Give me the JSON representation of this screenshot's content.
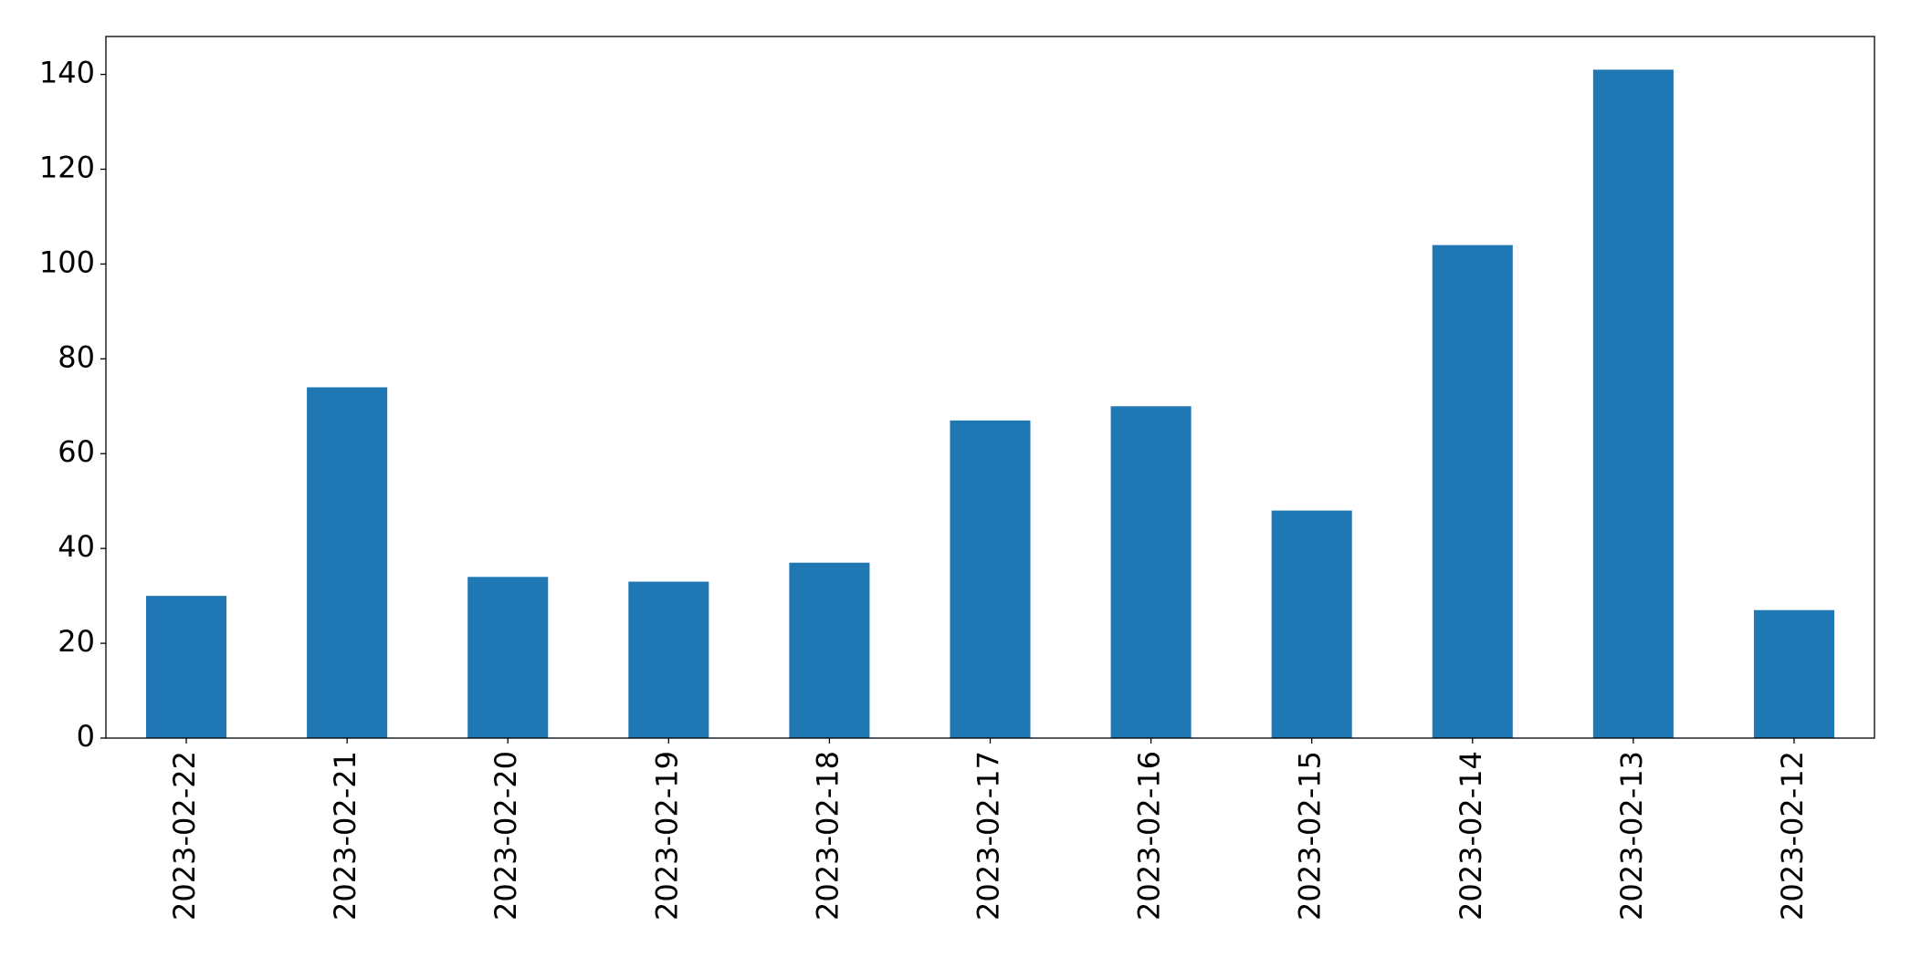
{
  "chart_data": {
    "type": "bar",
    "categories": [
      "2023-02-22",
      "2023-02-21",
      "2023-02-20",
      "2023-02-19",
      "2023-02-18",
      "2023-02-17",
      "2023-02-16",
      "2023-02-15",
      "2023-02-14",
      "2023-02-13",
      "2023-02-12"
    ],
    "values": [
      30,
      74,
      34,
      33,
      37,
      67,
      70,
      48,
      104,
      141,
      27
    ],
    "color": "#1f77b4",
    "ylim": [
      0,
      148
    ],
    "yticks": [
      0,
      20,
      40,
      60,
      80,
      100,
      120,
      140
    ],
    "grid": false
  }
}
